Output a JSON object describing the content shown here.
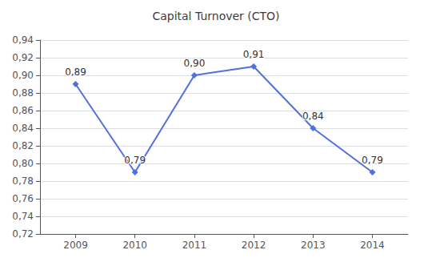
{
  "chart_data": {
    "type": "line",
    "title": "Capital Turnover (CTO)",
    "x": [
      2009,
      2010,
      2011,
      2012,
      2013,
      2014
    ],
    "values": [
      0.89,
      0.79,
      0.9,
      0.91,
      0.84,
      0.79
    ],
    "value_labels": [
      "0,89",
      "0,79",
      "0,90",
      "0,91",
      "0,84",
      "0,79"
    ],
    "data_labels": true,
    "marker": "diamond",
    "xlim": [
      2008.4,
      2014.6
    ],
    "xticks": [
      2009,
      2010,
      2011,
      2012,
      2013,
      2014
    ],
    "ylim": [
      0.72,
      0.94
    ],
    "yticks": [
      {
        "value": 0.72,
        "label": "0,72"
      },
      {
        "value": 0.74,
        "label": "0,74"
      },
      {
        "value": 0.76,
        "label": "0,76"
      },
      {
        "value": 0.78,
        "label": "0,78"
      },
      {
        "value": 0.8,
        "label": "0,80"
      },
      {
        "value": 0.82,
        "label": "0,82"
      },
      {
        "value": 0.84,
        "label": "0,84"
      },
      {
        "value": 0.86,
        "label": "0,86"
      },
      {
        "value": 0.88,
        "label": "0,88"
      },
      {
        "value": 0.9,
        "label": "0,90"
      },
      {
        "value": 0.92,
        "label": "0,92"
      },
      {
        "value": 0.94,
        "label": "0,94"
      }
    ],
    "grid": true
  }
}
